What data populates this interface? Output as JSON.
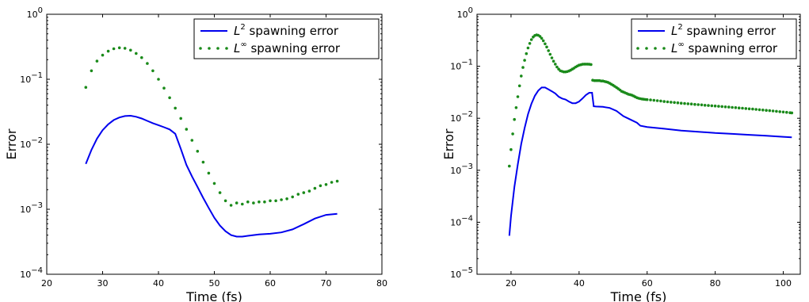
{
  "chart_data": [
    {
      "type": "line",
      "xlabel": "Time (fs)",
      "ylabel": "Error",
      "xlim": [
        20,
        80
      ],
      "ylim": [
        0.0001,
        1
      ],
      "yscale": "log",
      "xticks": [
        20,
        30,
        40,
        50,
        60,
        70,
        80
      ],
      "xtick_labels": [
        "20",
        "30",
        "40",
        "50",
        "60",
        "70",
        "80"
      ],
      "yticks": [
        0.0001,
        0.001,
        0.01,
        0.1,
        1
      ],
      "ytick_labels": [
        {
          "base": "10",
          "exp": "−4"
        },
        {
          "base": "10",
          "exp": "−3"
        },
        {
          "base": "10",
          "exp": "−2"
        },
        {
          "base": "10",
          "exp": "−1"
        },
        {
          "base": "10",
          "exp": "0"
        }
      ],
      "grid": false,
      "legend_position": "top-right",
      "series": [
        {
          "name_prefix": "L",
          "name_exp": "2",
          "name_suffix": " spawning error",
          "style": "line",
          "color": "#0000ee",
          "x": [
            27,
            28,
            29,
            30,
            31,
            32,
            33,
            34,
            35,
            36,
            37,
            38,
            39,
            40,
            41,
            42,
            43,
            44,
            45,
            46,
            47,
            48,
            49,
            50,
            51,
            52,
            53,
            54,
            55,
            56,
            58,
            60,
            62,
            64,
            66,
            68,
            70,
            72
          ],
          "y": [
            0.005,
            0.0082,
            0.0122,
            0.0165,
            0.0203,
            0.0236,
            0.0258,
            0.0272,
            0.0275,
            0.0265,
            0.0249,
            0.0229,
            0.0211,
            0.0197,
            0.0183,
            0.0169,
            0.0145,
            0.0085,
            0.0048,
            0.0032,
            0.0022,
            0.0015,
            0.00105,
            0.00074,
            0.00056,
            0.00046,
            0.0004,
            0.00038,
            0.00038,
            0.00039,
            0.00041,
            0.00042,
            0.00044,
            0.00049,
            0.00059,
            0.00072,
            0.00082,
            0.00085
          ]
        },
        {
          "name_prefix": "L",
          "name_exp": "∞",
          "name_suffix": " spawning error",
          "style": "dots",
          "color": "#1a8a1a",
          "x": [
            27,
            28,
            29,
            30,
            31,
            32,
            33,
            34,
            35,
            36,
            37,
            38,
            39,
            40,
            41,
            42,
            43,
            44,
            45,
            46,
            47,
            48,
            49,
            50,
            51,
            52,
            53,
            54,
            55,
            56,
            57,
            58,
            59,
            60,
            61,
            62,
            63,
            64,
            65,
            66,
            67,
            68,
            69,
            70,
            71,
            72
          ],
          "y": [
            0.075,
            0.135,
            0.19,
            0.235,
            0.27,
            0.295,
            0.305,
            0.3,
            0.28,
            0.25,
            0.215,
            0.175,
            0.135,
            0.1,
            0.073,
            0.052,
            0.036,
            0.025,
            0.017,
            0.0115,
            0.0078,
            0.0053,
            0.0036,
            0.0025,
            0.0018,
            0.00135,
            0.00115,
            0.00125,
            0.0012,
            0.0013,
            0.00125,
            0.0013,
            0.0013,
            0.00135,
            0.00135,
            0.0014,
            0.00145,
            0.00155,
            0.0017,
            0.0018,
            0.0019,
            0.0021,
            0.0023,
            0.0024,
            0.0026,
            0.0027
          ]
        }
      ]
    },
    {
      "type": "line",
      "xlabel": "Time (fs)",
      "ylabel": "Error",
      "xlim": [
        10,
        105
      ],
      "ylim": [
        1e-05,
        1
      ],
      "yscale": "log",
      "xticks": [
        20,
        40,
        60,
        80,
        100
      ],
      "xtick_labels": [
        "20",
        "40",
        "60",
        "80",
        "100"
      ],
      "yticks": [
        1e-05,
        0.0001,
        0.001,
        0.01,
        0.1,
        1
      ],
      "ytick_labels": [
        {
          "base": "10",
          "exp": "−5"
        },
        {
          "base": "10",
          "exp": "−4"
        },
        {
          "base": "10",
          "exp": "−3"
        },
        {
          "base": "10",
          "exp": "−2"
        },
        {
          "base": "10",
          "exp": "−1"
        },
        {
          "base": "10",
          "exp": "0"
        }
      ],
      "grid": false,
      "legend_position": "top-right",
      "series": [
        {
          "name_prefix": "L",
          "name_exp": "2",
          "name_suffix": " spawning error",
          "style": "line",
          "color": "#0000ee",
          "x": [
            19.5,
            20,
            21,
            22,
            23,
            24,
            25,
            26,
            27,
            28,
            29,
            30,
            31,
            32,
            33,
            34,
            35,
            36,
            37,
            38,
            39,
            40,
            41,
            42,
            43,
            43.8,
            44.3,
            45,
            47,
            49,
            51,
            53,
            55,
            57,
            58,
            60,
            65,
            70,
            75,
            80,
            85,
            90,
            95,
            100,
            102.5
          ],
          "y": [
            5.5e-05,
            0.00013,
            0.00048,
            0.0013,
            0.0032,
            0.0065,
            0.012,
            0.019,
            0.027,
            0.034,
            0.039,
            0.039,
            0.036,
            0.033,
            0.03,
            0.026,
            0.024,
            0.023,
            0.021,
            0.0195,
            0.0195,
            0.021,
            0.024,
            0.028,
            0.031,
            0.031,
            0.017,
            0.0168,
            0.0166,
            0.0158,
            0.0138,
            0.011,
            0.0095,
            0.0082,
            0.0072,
            0.0068,
            0.0063,
            0.0058,
            0.0055,
            0.0052,
            0.005,
            0.0048,
            0.0046,
            0.0044,
            0.0043
          ]
        },
        {
          "name_prefix": "L",
          "name_exp": "∞",
          "name_suffix": " spawning error",
          "style": "dots",
          "color": "#1a8a1a",
          "x": [
            19.5,
            20,
            20.5,
            21,
            21.5,
            22,
            22.5,
            23,
            23.5,
            24,
            24.5,
            25,
            25.5,
            26,
            26.5,
            27,
            27.5,
            28,
            28.5,
            29,
            29.5,
            30,
            30.5,
            31,
            31.5,
            32,
            32.5,
            33,
            33.5,
            34,
            34.5,
            35,
            35.5,
            36,
            36.5,
            37,
            37.5,
            38,
            38.5,
            39,
            39.5,
            40,
            40.5,
            41,
            41.5,
            42,
            42.5,
            43,
            43.5,
            44,
            44.5,
            45,
            45.5,
            46,
            46.5,
            47,
            47.5,
            48,
            48.5,
            49,
            49.5,
            50,
            50.5,
            51,
            51.5,
            52,
            52.5,
            53,
            53.5,
            54,
            54.5,
            55,
            55.5,
            56,
            56.5,
            57,
            57.5,
            58,
            58.5,
            59,
            59.5,
            60,
            61,
            62,
            63,
            64,
            65,
            66,
            67,
            68,
            69,
            70,
            71,
            72,
            73,
            74,
            75,
            76,
            77,
            78,
            79,
            80,
            81,
            82,
            83,
            84,
            85,
            86,
            87,
            88,
            89,
            90,
            91,
            92,
            93,
            94,
            95,
            96,
            97,
            98,
            99,
            100,
            101,
            102,
            102.5
          ],
          "y": [
            0.0012,
            0.0025,
            0.005,
            0.0095,
            0.016,
            0.026,
            0.042,
            0.065,
            0.095,
            0.13,
            0.175,
            0.225,
            0.275,
            0.325,
            0.365,
            0.39,
            0.4,
            0.395,
            0.375,
            0.345,
            0.31,
            0.27,
            0.235,
            0.2,
            0.17,
            0.145,
            0.125,
            0.11,
            0.097,
            0.088,
            0.082,
            0.08,
            0.078,
            0.078,
            0.079,
            0.081,
            0.084,
            0.088,
            0.092,
            0.097,
            0.101,
            0.105,
            0.107,
            0.109,
            0.11,
            0.11,
            0.11,
            0.109,
            0.108,
            0.054,
            0.053,
            0.053,
            0.053,
            0.053,
            0.052,
            0.052,
            0.051,
            0.05,
            0.049,
            0.047,
            0.045,
            0.043,
            0.041,
            0.039,
            0.037,
            0.035,
            0.033,
            0.032,
            0.031,
            0.03,
            0.029,
            0.0285,
            0.0278,
            0.0268,
            0.0258,
            0.0248,
            0.0242,
            0.0238,
            0.0235,
            0.0232,
            0.023,
            0.0228,
            0.0225,
            0.0222,
            0.0218,
            0.0215,
            0.021,
            0.0207,
            0.0204,
            0.0201,
            0.0198,
            0.0195,
            0.0192,
            0.019,
            0.0188,
            0.0185,
            0.0183,
            0.0181,
            0.0178,
            0.0176,
            0.0174,
            0.0172,
            0.017,
            0.0168,
            0.0166,
            0.0164,
            0.0162,
            0.016,
            0.0158,
            0.0156,
            0.0154,
            0.0152,
            0.015,
            0.0148,
            0.0146,
            0.0144,
            0.0142,
            0.014,
            0.0138,
            0.0136,
            0.0134,
            0.0132,
            0.013,
            0.0128,
            0.0127
          ]
        }
      ]
    }
  ]
}
